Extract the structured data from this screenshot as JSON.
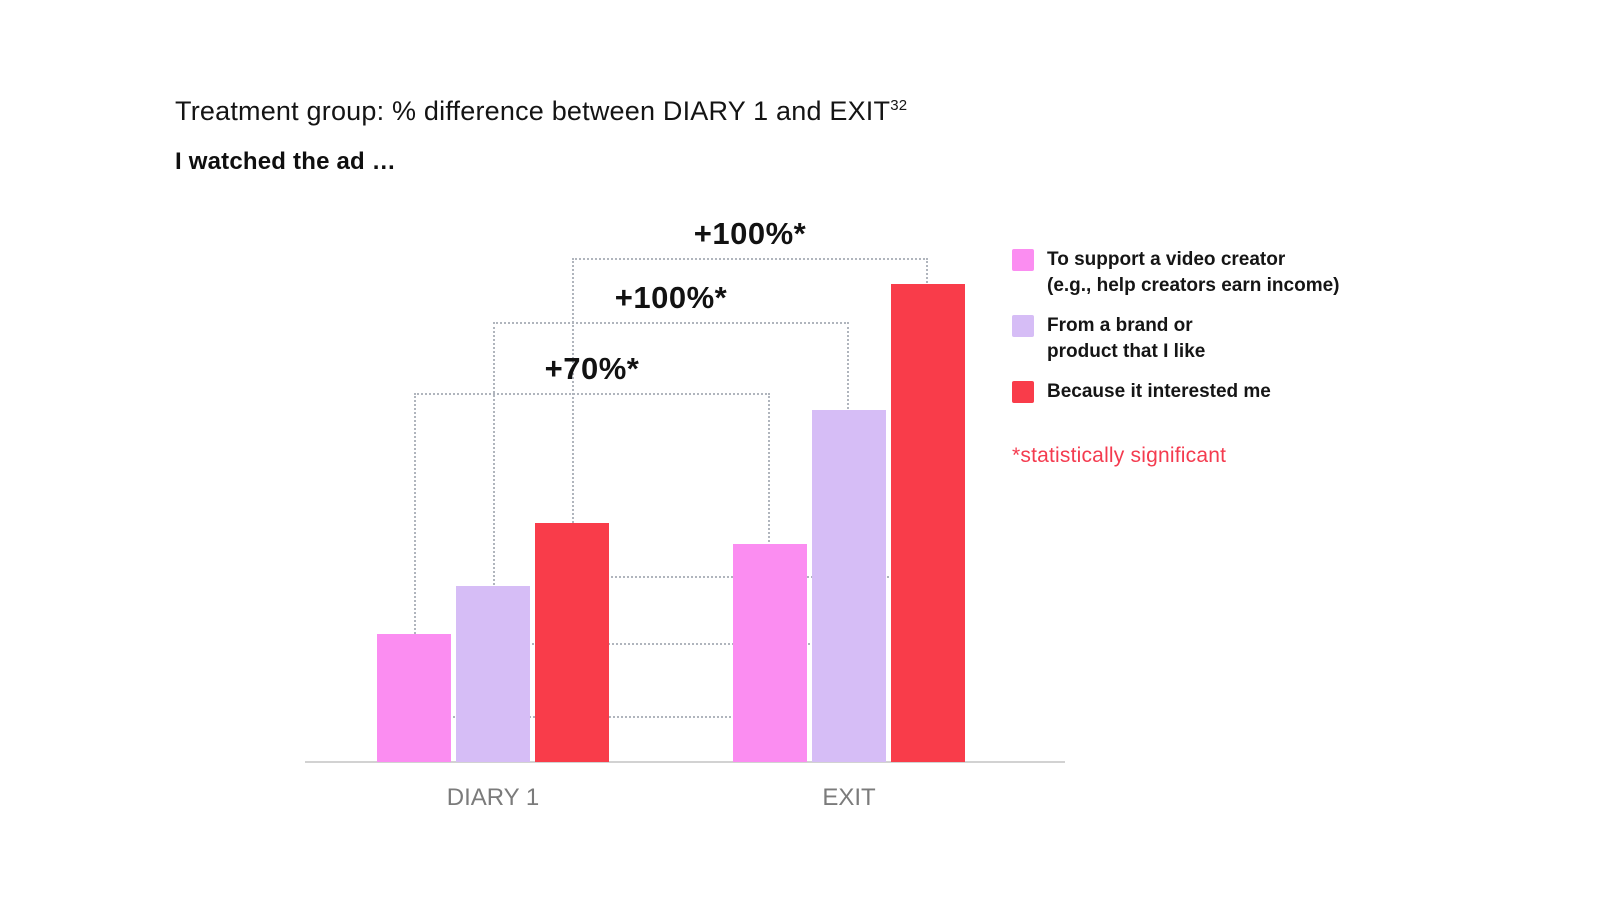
{
  "header": {
    "title": "Treatment group: % difference between DIARY 1 and EXIT",
    "title_superscript": "32",
    "subtitle": "I watched the ad …"
  },
  "legend_note": "*statistically significant",
  "chart_data": {
    "type": "bar",
    "title": "Treatment group: % difference between DIARY 1 and EXIT",
    "subtitle": "I watched the ad …",
    "categories": [
      "DIARY 1",
      "EXIT"
    ],
    "series": [
      {
        "name": "To support a video creator (e.g., help creators earn income)",
        "label_lines": [
          "To support a video creator",
          "(e.g., help creators earn income)"
        ],
        "color": "#fb8df1",
        "values": [
          100,
          170
        ]
      },
      {
        "name": "From a brand or product that I like",
        "label_lines": [
          "From a brand or",
          "product that I like"
        ],
        "color": "#d6bdf6",
        "values": [
          137,
          274
        ]
      },
      {
        "name": "Because it interested me",
        "label_lines": [
          "Because it interested me"
        ],
        "color": "#f93c4a",
        "values": [
          186,
          372
        ]
      }
    ],
    "annotations": [
      {
        "label": "+70%*",
        "series_index": 0
      },
      {
        "label": "+100%*",
        "series_index": 1
      },
      {
        "label": "+100%*",
        "series_index": 2
      }
    ],
    "xlabel": "",
    "ylabel": "",
    "ylim": [
      0,
      400
    ],
    "grid": false,
    "legend_position": "right",
    "note": "*statistically significant"
  }
}
